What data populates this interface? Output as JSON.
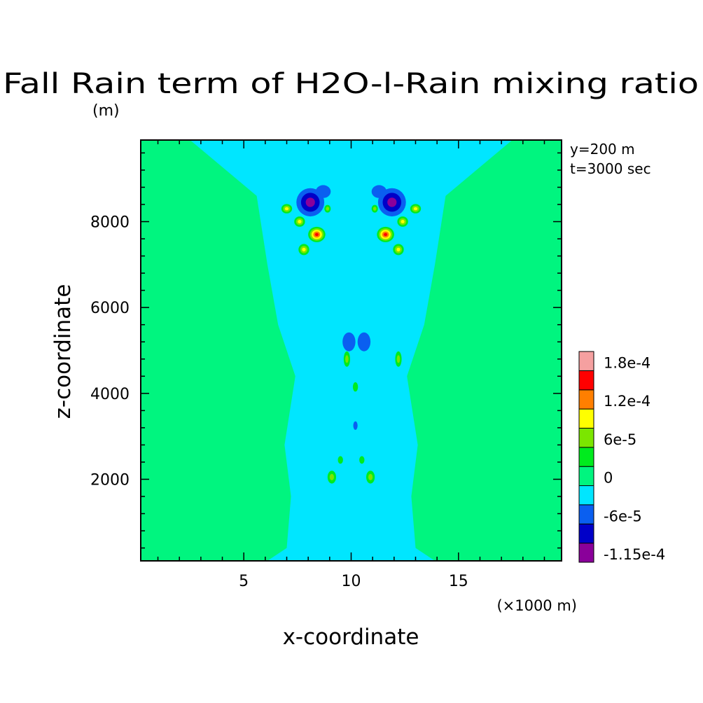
{
  "chart_data": {
    "type": "heatmap",
    "title": "Fall Rain term of H2O-l-Rain mixing ratio",
    "title_unit": "(m)",
    "xlabel": "x-coordinate",
    "x_unit": "(×1000 m)",
    "ylabel": "z-coordinate",
    "annotations": [
      "y=200 m",
      "t=3000 sec"
    ],
    "xlim": [
      0.2,
      19.8
    ],
    "ylim": [
      100,
      9900
    ],
    "x_ticks": [
      5,
      10,
      15
    ],
    "x_tick_labels": [
      "5",
      "10",
      "15"
    ],
    "y_ticks": [
      2000,
      4000,
      6000,
      8000
    ],
    "y_tick_labels": [
      "2000",
      "4000",
      "6000",
      "8000"
    ],
    "grid": false,
    "legend_placement": "right",
    "colorbar": {
      "colors": [
        "#8a009a",
        "#0000c8",
        "#0a5ff0",
        "#00e6ff",
        "#00f57f",
        "#00eb1e",
        "#7be600",
        "#ffff00",
        "#ff7f00",
        "#ff0000",
        "#f5a0a0"
      ],
      "labels": [
        "-1.15e-4",
        "-6e-5",
        "0",
        "6e-5",
        "1.2e-4",
        "1.8e-4"
      ]
    },
    "background_level_color": "#00f57f",
    "features": [
      {
        "kind": "column",
        "color": "#00e6ff",
        "polygon": [
          [
            6.1,
            100
          ],
          [
            7,
            400
          ],
          [
            7.2,
            1600
          ],
          [
            6.9,
            2800
          ],
          [
            7.4,
            4400
          ],
          [
            6.6,
            5600
          ],
          [
            6.1,
            7000
          ],
          [
            5.6,
            8600
          ],
          [
            2.5,
            9900
          ],
          [
            17.5,
            9900
          ],
          [
            14.4,
            8600
          ],
          [
            13.9,
            7000
          ],
          [
            13.4,
            5600
          ],
          [
            12.6,
            4400
          ],
          [
            13.1,
            2800
          ],
          [
            12.8,
            1600
          ],
          [
            13,
            400
          ],
          [
            13.9,
            100
          ]
        ]
      },
      {
        "kind": "blob",
        "x": 8.1,
        "z": 8450,
        "rx": 0.65,
        "rz": 330,
        "levels": [
          "#0a5ff0",
          "#0000c8",
          "#8a009a"
        ]
      },
      {
        "kind": "blob",
        "x": 11.9,
        "z": 8450,
        "rx": 0.65,
        "rz": 330,
        "levels": [
          "#0a5ff0",
          "#0000c8",
          "#8a009a"
        ]
      },
      {
        "kind": "blob",
        "x": 8.7,
        "z": 8700,
        "rx": 0.35,
        "rz": 150,
        "levels": [
          "#0a5ff0"
        ]
      },
      {
        "kind": "blob",
        "x": 11.3,
        "z": 8700,
        "rx": 0.35,
        "rz": 150,
        "levels": [
          "#0a5ff0"
        ]
      },
      {
        "kind": "blob",
        "x": 8.4,
        "z": 7700,
        "rx": 0.4,
        "rz": 180,
        "levels": [
          "#00eb1e",
          "#7be600",
          "#ffff00",
          "#ff7f00",
          "#ff0000"
        ]
      },
      {
        "kind": "blob",
        "x": 11.6,
        "z": 7700,
        "rx": 0.4,
        "rz": 180,
        "levels": [
          "#00eb1e",
          "#7be600",
          "#ffff00",
          "#ff7f00",
          "#ff0000"
        ]
      },
      {
        "kind": "blob",
        "x": 7.0,
        "z": 8300,
        "rx": 0.25,
        "rz": 110,
        "levels": [
          "#00eb1e",
          "#7be600",
          "#ffff00"
        ]
      },
      {
        "kind": "blob",
        "x": 13.0,
        "z": 8300,
        "rx": 0.25,
        "rz": 110,
        "levels": [
          "#00eb1e",
          "#7be600",
          "#ffff00"
        ]
      },
      {
        "kind": "blob",
        "x": 7.6,
        "z": 8000,
        "rx": 0.25,
        "rz": 120,
        "levels": [
          "#00eb1e",
          "#7be600",
          "#ffff00"
        ]
      },
      {
        "kind": "blob",
        "x": 12.4,
        "z": 8000,
        "rx": 0.25,
        "rz": 120,
        "levels": [
          "#00eb1e",
          "#7be600",
          "#ffff00"
        ]
      },
      {
        "kind": "blob",
        "x": 7.8,
        "z": 7350,
        "rx": 0.25,
        "rz": 130,
        "levels": [
          "#00eb1e",
          "#7be600",
          "#ffff00"
        ]
      },
      {
        "kind": "blob",
        "x": 12.2,
        "z": 7350,
        "rx": 0.25,
        "rz": 130,
        "levels": [
          "#00eb1e",
          "#7be600",
          "#ffff00"
        ]
      },
      {
        "kind": "blob",
        "x": 8.9,
        "z": 8300,
        "rx": 0.15,
        "rz": 90,
        "levels": [
          "#00eb1e",
          "#7be600"
        ]
      },
      {
        "kind": "blob",
        "x": 11.1,
        "z": 8300,
        "rx": 0.15,
        "rz": 90,
        "levels": [
          "#00eb1e",
          "#7be600"
        ]
      },
      {
        "kind": "blob",
        "x": 9.9,
        "z": 5200,
        "rx": 0.3,
        "rz": 220,
        "levels": [
          "#0a5ff0"
        ]
      },
      {
        "kind": "blob",
        "x": 10.6,
        "z": 5200,
        "rx": 0.3,
        "rz": 220,
        "levels": [
          "#0a5ff0"
        ]
      },
      {
        "kind": "blob",
        "x": 9.8,
        "z": 4800,
        "rx": 0.15,
        "rz": 180,
        "levels": [
          "#00eb1e",
          "#7be600"
        ]
      },
      {
        "kind": "blob",
        "x": 12.2,
        "z": 4800,
        "rx": 0.15,
        "rz": 180,
        "levels": [
          "#00eb1e",
          "#7be600"
        ]
      },
      {
        "kind": "blob",
        "x": 10.2,
        "z": 4150,
        "rx": 0.12,
        "rz": 110,
        "levels": [
          "#00eb1e"
        ]
      },
      {
        "kind": "blob",
        "x": 10.2,
        "z": 3250,
        "rx": 0.1,
        "rz": 100,
        "levels": [
          "#0a5ff0"
        ]
      },
      {
        "kind": "blob",
        "x": 9.5,
        "z": 2450,
        "rx": 0.12,
        "rz": 90,
        "levels": [
          "#00eb1e"
        ]
      },
      {
        "kind": "blob",
        "x": 10.5,
        "z": 2450,
        "rx": 0.12,
        "rz": 90,
        "levels": [
          "#00eb1e"
        ]
      },
      {
        "kind": "blob",
        "x": 9.1,
        "z": 2050,
        "rx": 0.2,
        "rz": 150,
        "levels": [
          "#00eb1e",
          "#7be600"
        ]
      },
      {
        "kind": "blob",
        "x": 10.9,
        "z": 2050,
        "rx": 0.2,
        "rz": 150,
        "levels": [
          "#00eb1e",
          "#7be600"
        ]
      }
    ]
  }
}
